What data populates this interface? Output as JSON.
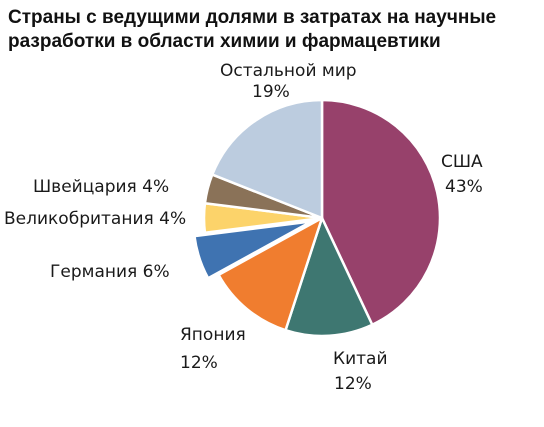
{
  "chart_data": {
    "type": "pie",
    "title": "Страны с ведущими долями в затратах на научные разработки в области химии и фармацевтики",
    "slices": [
      {
        "name": "США",
        "value": 43,
        "label": "43%",
        "color": "#97416b"
      },
      {
        "name": "Китай",
        "value": 12,
        "label": "12%",
        "color": "#3e7771"
      },
      {
        "name": "Япония",
        "value": 12,
        "label": "12%",
        "color": "#f07d2f"
      },
      {
        "name": "Германия",
        "value": 6,
        "label": "6%",
        "color": "#3f73b1",
        "exploded": true
      },
      {
        "name": "Великобритания",
        "value": 4,
        "label": "4%",
        "color": "#fcd36a"
      },
      {
        "name": "Швейцария",
        "value": 4,
        "label": "4%",
        "color": "#8a7258"
      },
      {
        "name": "Остальной мир",
        "value": 19,
        "label": "19%",
        "color": "#bcccdf"
      }
    ],
    "texts": {
      "usa_name": "США",
      "usa_pct": "43%",
      "china_name": "Китай",
      "china_pct": "12%",
      "japan_name": "Япония",
      "japan_pct": "12%",
      "germany": "Германия 6%",
      "uk": "Великобритания 4%",
      "switzerland": "Швейцария 4%",
      "rest_name": "Остальной мир",
      "rest_pct": "19%"
    }
  }
}
